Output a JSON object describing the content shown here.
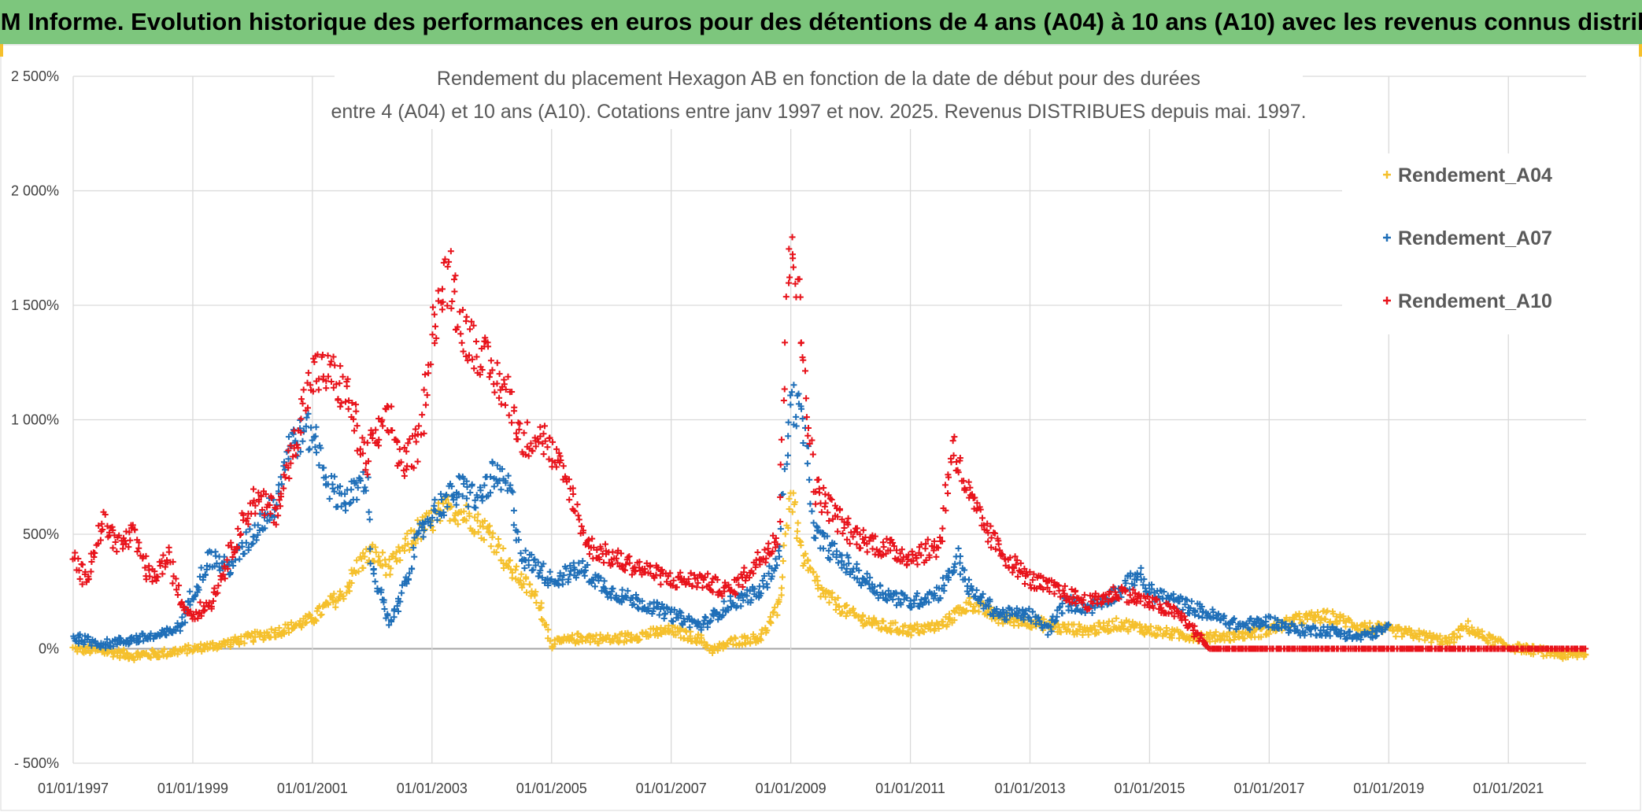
{
  "header": {
    "title": "ADAM Informe. Evolution historique des performances en euros pour des détentions de 4 ans (A04) à 10 ans (A10) avec les revenus connus distribués"
  },
  "colors": {
    "header_bg": "#7dc67d",
    "a04": "#f5c02c",
    "a07": "#1f6fb8",
    "a10": "#e8131b",
    "grid": "#d9d9d9",
    "zero_line": "#a6a6a6"
  },
  "chart_data": {
    "type": "scatter",
    "title_line1": "Rendement du placement Hexagon AB en fonction de la date de début pour des durées",
    "title_line2": "entre 4 (A04) et 10 ans (A10). Cotations entre janv 1997 et nov. 2025. Revenus DISTRIBUES depuis mai. 1997.",
    "xlabel": "",
    "ylabel": "",
    "x_range": [
      1997.0,
      2022.3
    ],
    "ylim": [
      -500,
      2500
    ],
    "y_ticks": [
      -500,
      0,
      500,
      1000,
      1500,
      2000,
      2500
    ],
    "y_tick_labels": [
      "- 500%",
      "0%",
      "500%",
      "1 000%",
      "1 500%",
      "2 000%",
      "2 500%"
    ],
    "x_ticks": [
      1997,
      1999,
      2001,
      2003,
      2005,
      2007,
      2009,
      2011,
      2013,
      2015,
      2017,
      2019,
      2021
    ],
    "x_tick_labels": [
      "01/01/1997",
      "01/01/1999",
      "01/01/2001",
      "01/01/2003",
      "01/01/2005",
      "01/01/2007",
      "01/01/2009",
      "01/01/2011",
      "01/01/2013",
      "01/01/2015",
      "01/01/2017",
      "01/01/2019",
      "01/01/2021"
    ],
    "legend_position": "top-right",
    "marker": "+",
    "series": [
      {
        "name": "Rendement_A04",
        "color": "#f5c02c",
        "x": [
          1997.0,
          1997.5,
          1998.0,
          1998.5,
          1999.0,
          1999.5,
          2000.0,
          2000.5,
          2001.0,
          2001.3,
          2001.5,
          2001.8,
          2002.0,
          2002.3,
          2002.7,
          2003.0,
          2003.3,
          2003.6,
          2004.0,
          2004.3,
          2004.5,
          2004.8,
          2005.0,
          2005.5,
          2006.0,
          2006.5,
          2007.0,
          2007.5,
          2007.7,
          2008.0,
          2008.5,
          2008.8,
          2009.0,
          2009.2,
          2009.5,
          2010.0,
          2010.5,
          2011.0,
          2011.5,
          2012.0,
          2012.5,
          2013.0,
          2013.5,
          2014.0,
          2014.5,
          2015.0,
          2015.5,
          2016.0,
          2016.5,
          2017.0,
          2017.5,
          2018.0,
          2018.5,
          2019.0,
          2019.5,
          2020.0,
          2020.3,
          2020.5,
          2021.0,
          2021.5,
          2022.0,
          2022.3
        ],
        "values": [
          0,
          -10,
          -30,
          -20,
          0,
          20,
          50,
          80,
          130,
          200,
          230,
          380,
          420,
          350,
          500,
          560,
          620,
          580,
          500,
          350,
          300,
          200,
          20,
          50,
          40,
          60,
          80,
          40,
          -10,
          30,
          50,
          180,
          700,
          400,
          250,
          150,
          100,
          80,
          100,
          200,
          130,
          120,
          90,
          80,
          110,
          80,
          60,
          50,
          60,
          80,
          130,
          140,
          100,
          80,
          60,
          30,
          100,
          60,
          10,
          -10,
          -30,
          -20
        ]
      },
      {
        "name": "Rendement_A07",
        "color": "#1f6fb8",
        "x": [
          1997.0,
          1997.5,
          1998.0,
          1998.5,
          1998.8,
          1999.0,
          1999.3,
          1999.6,
          2000.0,
          2000.4,
          2000.6,
          2001.0,
          2001.3,
          2001.6,
          2001.9,
          2002.0,
          2002.3,
          2002.5,
          2002.8,
          2003.0,
          2003.5,
          2003.8,
          2004.0,
          2004.3,
          2004.5,
          2004.8,
          2005.0,
          2005.5,
          2006.0,
          2006.5,
          2007.0,
          2007.5,
          2008.0,
          2008.5,
          2008.8,
          2009.0,
          2009.2,
          2009.4,
          2010.0,
          2010.5,
          2011.0,
          2011.5,
          2011.8,
          2012.0,
          2012.5,
          2013.0,
          2013.3,
          2013.6,
          2014.0,
          2014.5,
          2014.8,
          2015.0,
          2015.5,
          2016.0,
          2016.5,
          2017.0,
          2017.5,
          2018.0,
          2018.5,
          2019.0
        ],
        "values": [
          50,
          20,
          40,
          60,
          100,
          250,
          400,
          350,
          500,
          650,
          900,
          950,
          700,
          650,
          750,
          350,
          100,
          250,
          500,
          600,
          700,
          650,
          750,
          700,
          400,
          350,
          300,
          350,
          250,
          200,
          150,
          100,
          200,
          250,
          400,
          1100,
          1000,
          500,
          350,
          250,
          200,
          250,
          400,
          250,
          150,
          150,
          80,
          200,
          180,
          250,
          330,
          250,
          200,
          150,
          100,
          120,
          80,
          80,
          50,
          90
        ]
      },
      {
        "name": "Rendement_A10",
        "color": "#e8131b",
        "x": [
          1997.0,
          1997.2,
          1997.5,
          1997.8,
          1998.0,
          1998.3,
          1998.6,
          1998.8,
          1999.0,
          1999.3,
          1999.6,
          2000.0,
          2000.4,
          2000.7,
          2001.0,
          2001.3,
          2001.6,
          2001.9,
          2002.0,
          2002.3,
          2002.5,
          2002.8,
          2003.0,
          2003.3,
          2003.5,
          2003.8,
          2004.0,
          2004.3,
          2004.5,
          2004.8,
          2005.0,
          2005.3,
          2005.6,
          2006.0,
          2006.5,
          2007.0,
          2007.5,
          2008.0,
          2008.5,
          2008.8,
          2009.0,
          2009.2,
          2009.4,
          2009.7,
          2010.0,
          2010.5,
          2011.0,
          2011.5,
          2011.7,
          2012.0,
          2012.3,
          2012.6,
          2013.0,
          2013.5,
          2014.0,
          2014.5,
          2015.0,
          2015.5,
          2016.0,
          2016.5,
          2017.0,
          2018.0,
          2019.0,
          2020.0,
          2021.0,
          2022.0,
          2022.3
        ],
        "values": [
          400,
          300,
          550,
          450,
          500,
          300,
          400,
          200,
          150,
          200,
          400,
          650,
          600,
          900,
          1200,
          1200,
          1100,
          800,
          900,
          1000,
          800,
          900,
          1400,
          1650,
          1400,
          1300,
          1200,
          1100,
          900,
          950,
          850,
          700,
          450,
          400,
          350,
          300,
          300,
          250,
          400,
          500,
          1900,
          1300,
          700,
          600,
          500,
          450,
          400,
          450,
          900,
          650,
          500,
          400,
          300,
          250,
          200,
          250,
          200,
          150,
          0,
          0,
          0,
          0,
          0,
          0,
          0,
          0,
          0
        ]
      }
    ]
  }
}
